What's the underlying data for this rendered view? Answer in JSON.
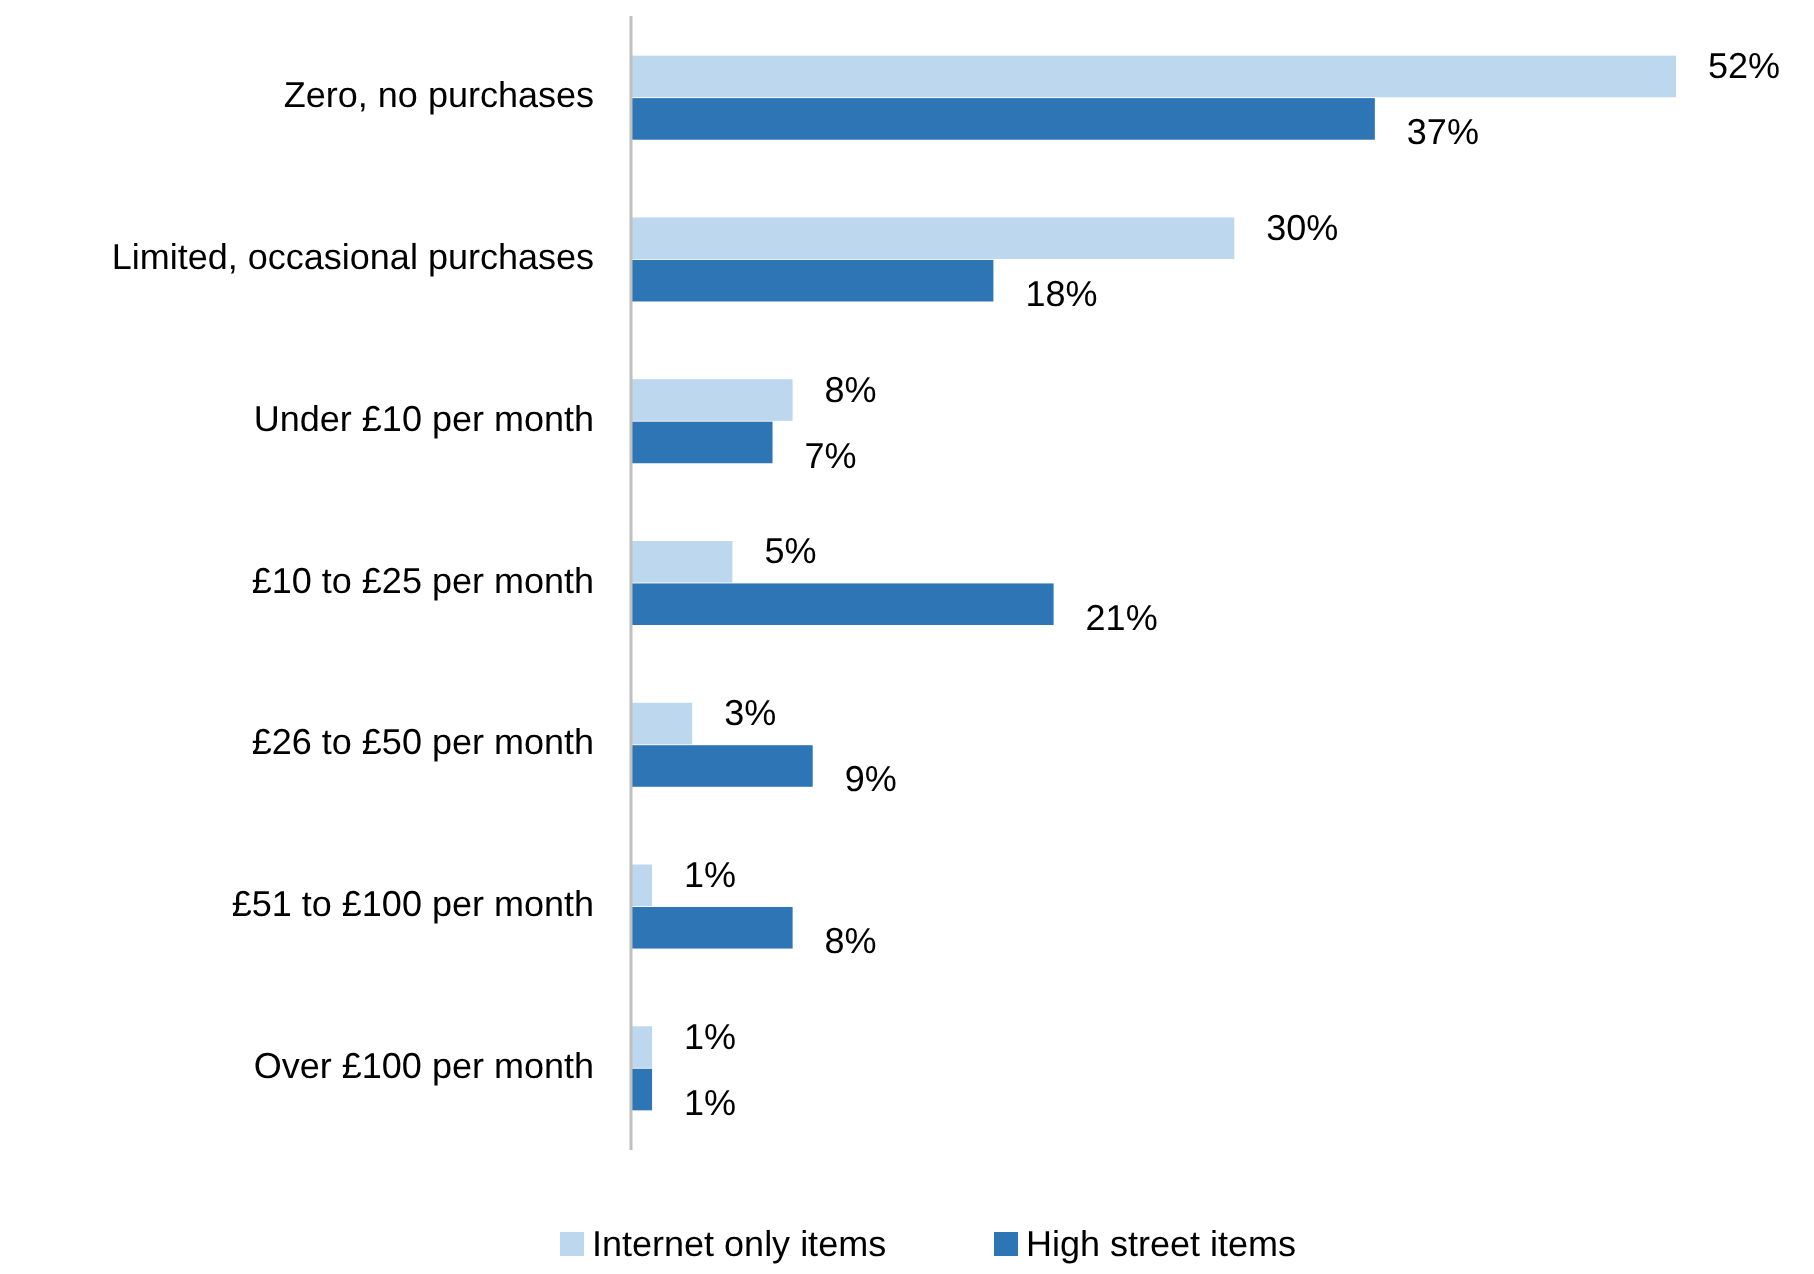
{
  "chart_data": {
    "type": "bar",
    "orientation": "horizontal",
    "categories": [
      "Zero, no purchases",
      "Limited, occasional purchases",
      "Under £10 per month",
      "£10 to £25 per month",
      "£26 to £50 per month",
      "£51 to £100 per month",
      "Over £100 per month"
    ],
    "series": [
      {
        "name": "Internet only items",
        "color": "#bdd7ee",
        "values": [
          52,
          30,
          8,
          5,
          3,
          1,
          1
        ],
        "value_labels": [
          "52%",
          "30%",
          "8%",
          "5%",
          "3%",
          "1%",
          "1%"
        ]
      },
      {
        "name": "High street items",
        "color": "#2e75b6",
        "values": [
          37,
          18,
          7,
          21,
          9,
          8,
          1
        ],
        "value_labels": [
          "37%",
          "18%",
          "7%",
          "21%",
          "9%",
          "8%",
          "1%"
        ]
      }
    ],
    "legend": "bottom"
  }
}
